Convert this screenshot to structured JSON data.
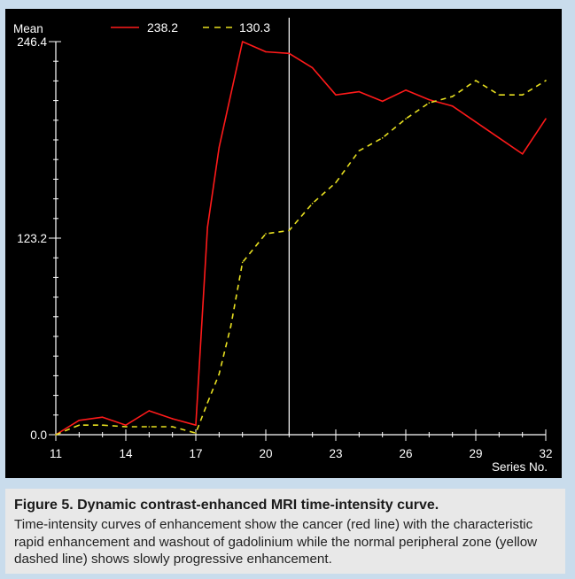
{
  "chart_data": {
    "type": "line",
    "ylabel": "Mean",
    "xlabel": "Series No.",
    "ylim": [
      0,
      246.4
    ],
    "xlim": [
      11,
      32
    ],
    "y_tick_labels": [
      "246.4",
      "123.2",
      "0.0"
    ],
    "y_ticks": [
      246.4,
      123.2,
      0.0
    ],
    "x_tick_labels": [
      "11",
      "14",
      "17",
      "20",
      "23",
      "26",
      "29",
      "32"
    ],
    "x_ticks": [
      11,
      14,
      17,
      20,
      23,
      26,
      29,
      32
    ],
    "cursor_x": 21,
    "series": [
      {
        "name": "238.2",
        "color": "#ff1a1a",
        "style": "solid",
        "x": [
          11,
          12,
          13,
          14,
          15,
          16,
          17,
          17.5,
          18,
          19,
          20,
          21,
          22,
          23,
          24,
          25,
          26,
          27,
          28,
          29,
          30,
          31,
          32
        ],
        "y": [
          0,
          9,
          11,
          6,
          15,
          10,
          6,
          130,
          180,
          246.4,
          240,
          239,
          230,
          213,
          215,
          209,
          216,
          210,
          206,
          196,
          186,
          176,
          198
        ]
      },
      {
        "name": "130.3",
        "color": "#e8e020",
        "style": "dashed",
        "x": [
          11,
          12,
          13,
          14,
          15,
          16,
          17,
          17.5,
          18,
          18.5,
          19,
          20,
          21,
          22,
          23,
          24,
          25,
          26,
          27,
          28,
          29,
          30,
          31,
          32
        ],
        "y": [
          0,
          6,
          6,
          5,
          5,
          5,
          1,
          20,
          38,
          68,
          108,
          126,
          128,
          145,
          158,
          178,
          186,
          198,
          208,
          212,
          222,
          213,
          213,
          222
        ]
      }
    ]
  },
  "caption": {
    "title": "Figure 5. Dynamic contrast-enhanced MRI time-intensity curve.",
    "body": "Time-intensity curves of enhancement show the cancer (red line) with the characteristic rapid enhancement and washout of gadolinium while the normal peripheral zone (yellow dashed line) shows slowly progressive enhancement."
  }
}
